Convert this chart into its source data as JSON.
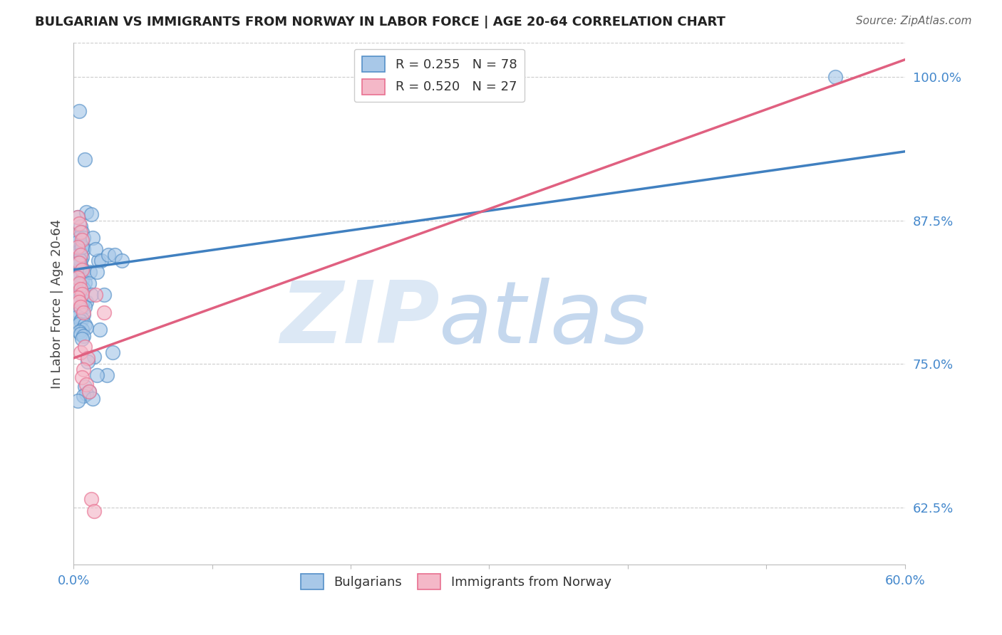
{
  "title": "BULGARIAN VS IMMIGRANTS FROM NORWAY IN LABOR FORCE | AGE 20-64 CORRELATION CHART",
  "source": "Source: ZipAtlas.com",
  "ylabel": "In Labor Force | Age 20-64",
  "xmin": 0.0,
  "xmax": 0.6,
  "ymin": 0.575,
  "ymax": 1.03,
  "x_ticks": [
    0.0,
    0.1,
    0.2,
    0.3,
    0.4,
    0.5,
    0.6
  ],
  "x_tick_labels": [
    "0.0%",
    "",
    "",
    "",
    "",
    "",
    "60.0%"
  ],
  "y_tick_labels_shown": [
    0.625,
    0.75,
    0.875,
    1.0
  ],
  "y_tick_labels": {
    "0.625": "62.5%",
    "0.75": "75.0%",
    "0.875": "87.5%",
    "1.0": "100.0%"
  },
  "R_blue": 0.255,
  "N_blue": 78,
  "R_pink": 0.52,
  "N_pink": 27,
  "blue_color": "#a8c8e8",
  "pink_color": "#f4b8c8",
  "blue_edge_color": "#5590c8",
  "pink_edge_color": "#e87090",
  "blue_line_color": "#4080c0",
  "pink_line_color": "#e06080",
  "watermark_zip_color": "#dce8f5",
  "watermark_atlas_color": "#c5d8ee",
  "blue_line_x0": 0.0,
  "blue_line_y0": 0.832,
  "blue_line_x1": 0.6,
  "blue_line_y1": 0.935,
  "pink_line_x0": 0.0,
  "pink_line_y0": 0.755,
  "pink_line_x1": 0.6,
  "pink_line_y1": 1.015,
  "blue_scatter_x": [
    0.004,
    0.008,
    0.003,
    0.005,
    0.006,
    0.004,
    0.003,
    0.005,
    0.007,
    0.004,
    0.003,
    0.006,
    0.005,
    0.004,
    0.003,
    0.006,
    0.007,
    0.005,
    0.004,
    0.003,
    0.006,
    0.008,
    0.004,
    0.005,
    0.003,
    0.007,
    0.006,
    0.009,
    0.005,
    0.004,
    0.003,
    0.006,
    0.007,
    0.005,
    0.004,
    0.009,
    0.006,
    0.008,
    0.005,
    0.004,
    0.007,
    0.003,
    0.006,
    0.005,
    0.004,
    0.008,
    0.006,
    0.009,
    0.004,
    0.005,
    0.007,
    0.006,
    0.013,
    0.018,
    0.014,
    0.012,
    0.016,
    0.011,
    0.02,
    0.025,
    0.013,
    0.017,
    0.03,
    0.035,
    0.022,
    0.019,
    0.015,
    0.01,
    0.028,
    0.024,
    0.017,
    0.008,
    0.011,
    0.009,
    0.007,
    0.014,
    0.003,
    0.55
  ],
  "blue_scatter_y": [
    0.97,
    0.928,
    0.878,
    0.87,
    0.865,
    0.86,
    0.856,
    0.852,
    0.85,
    0.848,
    0.845,
    0.843,
    0.84,
    0.837,
    0.835,
    0.833,
    0.831,
    0.829,
    0.827,
    0.825,
    0.823,
    0.821,
    0.819,
    0.818,
    0.816,
    0.815,
    0.813,
    0.882,
    0.835,
    0.841,
    0.838,
    0.852,
    0.86,
    0.808,
    0.806,
    0.804,
    0.802,
    0.8,
    0.798,
    0.795,
    0.793,
    0.791,
    0.789,
    0.787,
    0.785,
    0.784,
    0.78,
    0.782,
    0.778,
    0.776,
    0.774,
    0.772,
    0.88,
    0.84,
    0.86,
    0.83,
    0.85,
    0.82,
    0.84,
    0.845,
    0.81,
    0.83,
    0.845,
    0.84,
    0.81,
    0.78,
    0.756,
    0.752,
    0.76,
    0.74,
    0.74,
    0.73,
    0.726,
    0.724,
    0.722,
    0.72,
    0.718,
    1.0
  ],
  "pink_scatter_x": [
    0.003,
    0.004,
    0.005,
    0.006,
    0.003,
    0.005,
    0.004,
    0.006,
    0.003,
    0.004,
    0.005,
    0.006,
    0.003,
    0.004,
    0.005,
    0.007,
    0.005,
    0.016,
    0.022,
    0.008,
    0.01,
    0.007,
    0.006,
    0.009,
    0.011,
    0.013,
    0.015
  ],
  "pink_scatter_y": [
    0.878,
    0.872,
    0.865,
    0.858,
    0.852,
    0.845,
    0.838,
    0.832,
    0.825,
    0.82,
    0.815,
    0.811,
    0.808,
    0.804,
    0.8,
    0.795,
    0.76,
    0.81,
    0.795,
    0.765,
    0.755,
    0.745,
    0.738,
    0.732,
    0.726,
    0.632,
    0.622
  ]
}
